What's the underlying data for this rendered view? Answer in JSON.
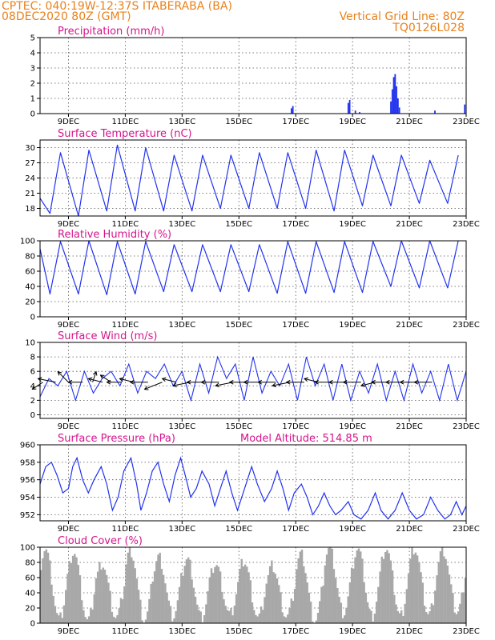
{
  "header": {
    "line1": "CPTEC:   040:19W-12:37S   ITABERABA (BA)",
    "line2": "08DEC2020 80Z (GMT)",
    "grid_note": "Vertical Grid Line: 80Z",
    "code": "TQ0126L028"
  },
  "colors": {
    "line": "#2233ee",
    "cloud": "#a8a8a8",
    "title": "#d4148c",
    "header": "#e8821c"
  },
  "x_axis": {
    "start": "08DEC2020",
    "end": "23DEC2020",
    "tick_days": [
      9,
      11,
      13,
      15,
      17,
      19,
      21,
      23
    ],
    "tick_labels": [
      "9DEC",
      "11DEC",
      "13DEC",
      "15DEC",
      "17DEC",
      "19DEC",
      "21DEC",
      "23DEC"
    ]
  },
  "chart_data": [
    {
      "type": "bar",
      "title": "Precipitation (mm/h)",
      "ylim": [
        0,
        5
      ],
      "yticks": [
        0,
        1,
        2,
        3,
        4,
        5
      ],
      "grid": true,
      "events": [
        {
          "day": 16.85,
          "value": 0.35
        },
        {
          "day": 16.9,
          "value": 0.5
        },
        {
          "day": 18.85,
          "value": 0.7
        },
        {
          "day": 18.9,
          "value": 0.9
        },
        {
          "day": 19.1,
          "value": 0.2
        },
        {
          "day": 19.25,
          "value": 0.1
        },
        {
          "day": 20.35,
          "value": 0.8
        },
        {
          "day": 20.4,
          "value": 1.6
        },
        {
          "day": 20.45,
          "value": 2.4
        },
        {
          "day": 20.5,
          "value": 2.6
        },
        {
          "day": 20.55,
          "value": 1.8
        },
        {
          "day": 20.6,
          "value": 1.0
        },
        {
          "day": 20.65,
          "value": 0.4
        },
        {
          "day": 21.9,
          "value": 0.2
        },
        {
          "day": 22.95,
          "value": 0.6
        }
      ]
    },
    {
      "type": "line",
      "title": "Surface Temperature (nC)",
      "ylim": [
        16.5,
        31.5
      ],
      "yticks": [
        18,
        21,
        24,
        27,
        30
      ],
      "grid": true,
      "diurnal": {
        "min": [
          17,
          16.5,
          17.5,
          17.5,
          17.5,
          17.5,
          18,
          18,
          18,
          18,
          17.5,
          18.5,
          18.5,
          19,
          19,
          20
        ],
        "max": [
          29,
          29.5,
          30.5,
          30,
          28.5,
          28.5,
          28.5,
          29,
          29,
          29.5,
          29.5,
          28.5,
          28.5,
          27.5,
          28.5
        ],
        "phase_min": 0.35,
        "phase_max": 0.72
      }
    },
    {
      "type": "line",
      "title": "Relative Humidity (%)",
      "ylim": [
        0,
        100
      ],
      "yticks": [
        0,
        20,
        40,
        60,
        80,
        100
      ],
      "grid": true,
      "diurnal": {
        "max": [
          99,
          100,
          99,
          99,
          95,
          95,
          95,
          95,
          99,
          99,
          99,
          99,
          100,
          100,
          100,
          100
        ],
        "min": [
          30,
          30,
          29,
          30,
          33,
          33,
          33,
          33,
          31,
          31,
          32,
          32,
          40,
          38,
          38
        ],
        "phase_min": 0.35,
        "phase_max": 0.72
      }
    },
    {
      "type": "line",
      "title": "Surface Wind (m/s)",
      "ylim": [
        -0.5,
        10
      ],
      "yticks": [
        0,
        2,
        4,
        6,
        8,
        10
      ],
      "grid": true,
      "speed": [
        2.5,
        5,
        4,
        6,
        2,
        6,
        3,
        5,
        6,
        4,
        7,
        3,
        6,
        5,
        7,
        4,
        6,
        2,
        7,
        3,
        8,
        5,
        7,
        2,
        8,
        3,
        6,
        4,
        7,
        2,
        8,
        4,
        7,
        2,
        7,
        2,
        6,
        3,
        7,
        2,
        6,
        2,
        7,
        3,
        6,
        2,
        7,
        2,
        6
      ],
      "arrows": [
        {
          "day": 8.1,
          "u": -3,
          "v": -2
        },
        {
          "day": 8.55,
          "u": -5,
          "v": 1
        },
        {
          "day": 9.0,
          "u": -3,
          "v": 3
        },
        {
          "day": 9.5,
          "u": -4,
          "v": 0
        },
        {
          "day": 9.85,
          "u": 1,
          "v": 3
        },
        {
          "day": 10.2,
          "u": -4,
          "v": 1
        },
        {
          "day": 10.5,
          "u": -3,
          "v": 2
        },
        {
          "day": 10.85,
          "u": -4,
          "v": 0
        },
        {
          "day": 11.3,
          "u": -4,
          "v": 1
        },
        {
          "day": 11.8,
          "u": -5,
          "v": 0
        },
        {
          "day": 12.3,
          "u": -5,
          "v": -2
        },
        {
          "day": 12.8,
          "u": -4,
          "v": 1
        },
        {
          "day": 13.3,
          "u": -5,
          "v": -1
        },
        {
          "day": 13.8,
          "u": -5,
          "v": 0
        },
        {
          "day": 14.3,
          "u": -5,
          "v": 0
        },
        {
          "day": 14.8,
          "u": -5,
          "v": -1
        },
        {
          "day": 15.3,
          "u": -5,
          "v": 0
        },
        {
          "day": 15.8,
          "u": -5,
          "v": 0
        },
        {
          "day": 16.3,
          "u": -5,
          "v": 0
        },
        {
          "day": 16.8,
          "u": -5,
          "v": -1
        },
        {
          "day": 17.3,
          "u": -5,
          "v": 0
        },
        {
          "day": 17.8,
          "u": -4,
          "v": 1
        },
        {
          "day": 18.3,
          "u": -5,
          "v": 0
        },
        {
          "day": 18.8,
          "u": -5,
          "v": 0
        },
        {
          "day": 19.3,
          "u": -5,
          "v": 0
        },
        {
          "day": 19.8,
          "u": -4,
          "v": -1
        },
        {
          "day": 20.3,
          "u": -5,
          "v": 0
        },
        {
          "day": 20.8,
          "u": -5,
          "v": 0
        },
        {
          "day": 21.3,
          "u": -5,
          "v": 0
        },
        {
          "day": 21.8,
          "u": -5,
          "v": 0
        }
      ]
    },
    {
      "type": "line",
      "title": "Surface Pressure (hPa)",
      "subtitle": "Model Altitude: 514.85 m",
      "ylim": [
        951.3,
        960
      ],
      "yticks": [
        952,
        954,
        956,
        958,
        960
      ],
      "grid": true,
      "samples": [
        {
          "day": 8.0,
          "value": 955.5
        },
        {
          "day": 8.2,
          "value": 957.5
        },
        {
          "day": 8.4,
          "value": 958.0
        },
        {
          "day": 8.6,
          "value": 956.5
        },
        {
          "day": 8.8,
          "value": 954.5
        },
        {
          "day": 9.0,
          "value": 955.0
        },
        {
          "day": 9.15,
          "value": 957.5
        },
        {
          "day": 9.3,
          "value": 958.5
        },
        {
          "day": 9.5,
          "value": 956.0
        },
        {
          "day": 9.7,
          "value": 954.5
        },
        {
          "day": 9.9,
          "value": 956.0
        },
        {
          "day": 10.15,
          "value": 957.5
        },
        {
          "day": 10.35,
          "value": 955.5
        },
        {
          "day": 10.55,
          "value": 952.5
        },
        {
          "day": 10.75,
          "value": 954.0
        },
        {
          "day": 10.95,
          "value": 957.0
        },
        {
          "day": 11.2,
          "value": 958.5
        },
        {
          "day": 11.4,
          "value": 955.5
        },
        {
          "day": 11.55,
          "value": 952.5
        },
        {
          "day": 11.75,
          "value": 954.5
        },
        {
          "day": 11.95,
          "value": 957.0
        },
        {
          "day": 12.15,
          "value": 958.0
        },
        {
          "day": 12.35,
          "value": 955.5
        },
        {
          "day": 12.55,
          "value": 953.5
        },
        {
          "day": 12.75,
          "value": 956.5
        },
        {
          "day": 12.95,
          "value": 958.5
        },
        {
          "day": 13.15,
          "value": 956.0
        },
        {
          "day": 13.3,
          "value": 954.0
        },
        {
          "day": 13.5,
          "value": 955.0
        },
        {
          "day": 13.7,
          "value": 957.0
        },
        {
          "day": 13.95,
          "value": 955.5
        },
        {
          "day": 14.15,
          "value": 953.0
        },
        {
          "day": 14.35,
          "value": 955.0
        },
        {
          "day": 14.55,
          "value": 957.0
        },
        {
          "day": 14.75,
          "value": 954.5
        },
        {
          "day": 14.95,
          "value": 952.5
        },
        {
          "day": 15.2,
          "value": 955.0
        },
        {
          "day": 15.45,
          "value": 957.5
        },
        {
          "day": 15.65,
          "value": 955.5
        },
        {
          "day": 15.9,
          "value": 953.5
        },
        {
          "day": 16.15,
          "value": 955.0
        },
        {
          "day": 16.35,
          "value": 957.0
        },
        {
          "day": 16.55,
          "value": 955.0
        },
        {
          "day": 16.75,
          "value": 952.5
        },
        {
          "day": 16.95,
          "value": 954.5
        },
        {
          "day": 17.2,
          "value": 955.5
        },
        {
          "day": 17.4,
          "value": 954.0
        },
        {
          "day": 17.6,
          "value": 952.0
        },
        {
          "day": 17.8,
          "value": 953.0
        },
        {
          "day": 18.0,
          "value": 954.5
        },
        {
          "day": 18.2,
          "value": 953.0
        },
        {
          "day": 18.4,
          "value": 952.0
        },
        {
          "day": 18.6,
          "value": 952.5
        },
        {
          "day": 18.85,
          "value": 953.5
        },
        {
          "day": 19.05,
          "value": 952.0
        },
        {
          "day": 19.3,
          "value": 951.5
        },
        {
          "day": 19.55,
          "value": 952.5
        },
        {
          "day": 19.8,
          "value": 954.5
        },
        {
          "day": 20.0,
          "value": 952.5
        },
        {
          "day": 20.25,
          "value": 951.5
        },
        {
          "day": 20.5,
          "value": 952.5
        },
        {
          "day": 20.75,
          "value": 954.5
        },
        {
          "day": 21.0,
          "value": 952.5
        },
        {
          "day": 21.25,
          "value": 951.5
        },
        {
          "day": 21.5,
          "value": 952.0
        },
        {
          "day": 21.75,
          "value": 954.0
        },
        {
          "day": 22.0,
          "value": 952.5
        },
        {
          "day": 22.25,
          "value": 951.5
        },
        {
          "day": 22.45,
          "value": 952.0
        },
        {
          "day": 22.65,
          "value": 953.5
        },
        {
          "day": 22.85,
          "value": 952.0
        },
        {
          "day": 23.0,
          "value": 953.0
        }
      ]
    },
    {
      "type": "bar",
      "title": "Cloud Cover (%)",
      "ylim": [
        0,
        100
      ],
      "yticks": [
        0,
        20,
        40,
        60,
        80,
        100
      ],
      "grid": true,
      "daily_peak": [
        98,
        95,
        80,
        97,
        88,
        85,
        78,
        82,
        75,
        90,
        98,
        98,
        99,
        99,
        97
      ],
      "daily_trough": [
        5,
        3,
        8,
        5,
        10,
        8,
        12,
        8,
        10,
        5,
        15,
        10,
        10,
        12,
        15
      ]
    }
  ]
}
